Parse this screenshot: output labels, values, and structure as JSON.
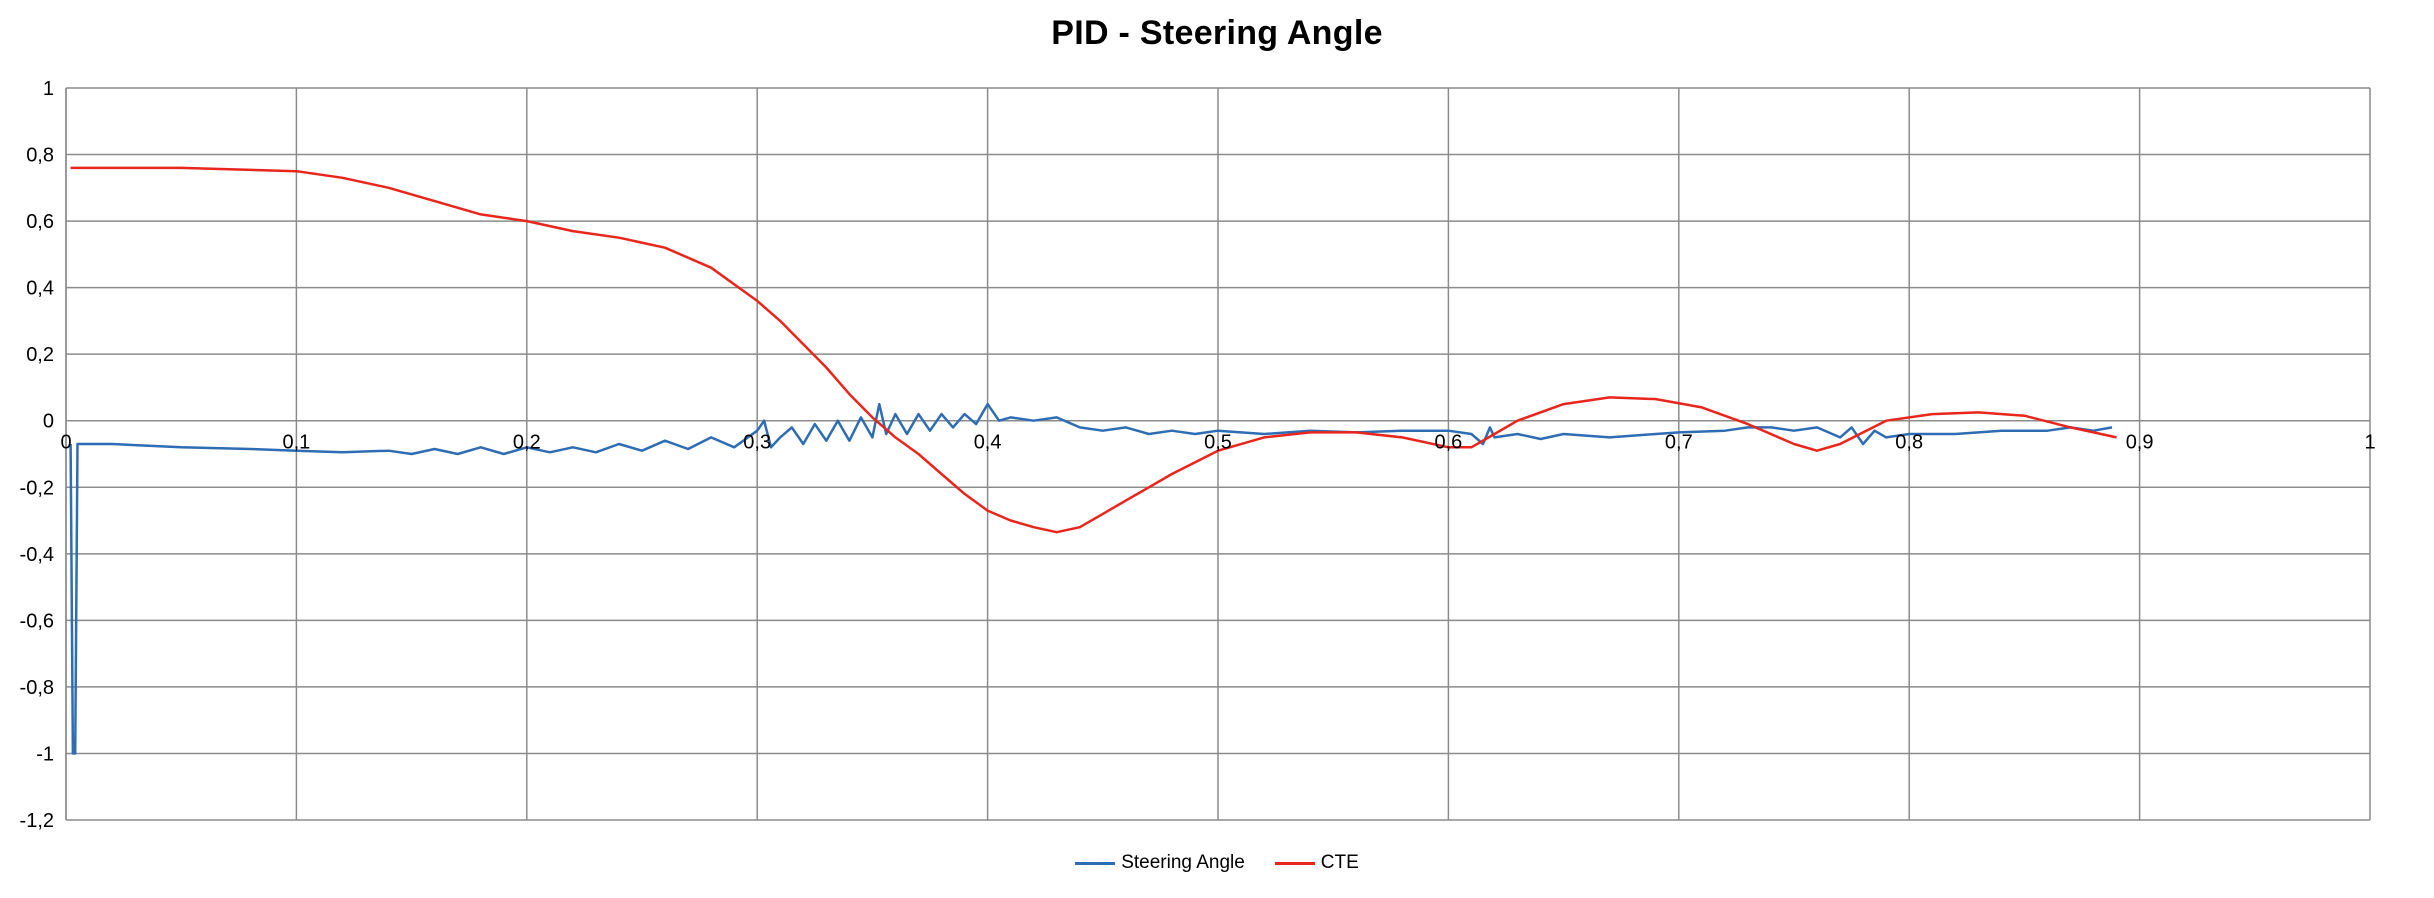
{
  "chart_data": {
    "type": "line",
    "title": "PID - Steering Angle",
    "xlabel": "",
    "ylabel": "",
    "xlim": [
      0,
      1
    ],
    "ylim": [
      -1.2,
      1
    ],
    "x_ticks": [
      "0",
      "0,1",
      "0,2",
      "0,3",
      "0,4",
      "0,5",
      "0,6",
      "0,7",
      "0,8",
      "0,9",
      "1"
    ],
    "y_ticks": [
      "1",
      "0,8",
      "0,6",
      "0,4",
      "0,2",
      "0",
      "-0,2",
      "-0,4",
      "-0,6",
      "-0,8",
      "-1",
      "-1,2"
    ],
    "grid": true,
    "legend_position": "bottom",
    "series": [
      {
        "name": "Steering Angle",
        "color": "#2e6db4",
        "points": [
          [
            0.002,
            -0.07
          ],
          [
            0.003,
            -1.0
          ],
          [
            0.004,
            -1.0
          ],
          [
            0.005,
            -0.07
          ],
          [
            0.02,
            -0.07
          ],
          [
            0.05,
            -0.08
          ],
          [
            0.08,
            -0.085
          ],
          [
            0.1,
            -0.09
          ],
          [
            0.12,
            -0.095
          ],
          [
            0.14,
            -0.09
          ],
          [
            0.15,
            -0.1
          ],
          [
            0.16,
            -0.085
          ],
          [
            0.17,
            -0.1
          ],
          [
            0.18,
            -0.08
          ],
          [
            0.19,
            -0.1
          ],
          [
            0.2,
            -0.08
          ],
          [
            0.21,
            -0.095
          ],
          [
            0.22,
            -0.08
          ],
          [
            0.23,
            -0.095
          ],
          [
            0.24,
            -0.07
          ],
          [
            0.25,
            -0.09
          ],
          [
            0.26,
            -0.06
          ],
          [
            0.27,
            -0.085
          ],
          [
            0.28,
            -0.05
          ],
          [
            0.29,
            -0.08
          ],
          [
            0.3,
            -0.03
          ],
          [
            0.303,
            0.0
          ],
          [
            0.306,
            -0.08
          ],
          [
            0.31,
            -0.05
          ],
          [
            0.315,
            -0.02
          ],
          [
            0.32,
            -0.07
          ],
          [
            0.325,
            -0.01
          ],
          [
            0.33,
            -0.06
          ],
          [
            0.335,
            0.0
          ],
          [
            0.34,
            -0.06
          ],
          [
            0.345,
            0.01
          ],
          [
            0.35,
            -0.05
          ],
          [
            0.353,
            0.05
          ],
          [
            0.356,
            -0.04
          ],
          [
            0.36,
            0.02
          ],
          [
            0.365,
            -0.04
          ],
          [
            0.37,
            0.02
          ],
          [
            0.375,
            -0.03
          ],
          [
            0.38,
            0.02
          ],
          [
            0.385,
            -0.02
          ],
          [
            0.39,
            0.02
          ],
          [
            0.395,
            -0.01
          ],
          [
            0.4,
            0.05
          ],
          [
            0.405,
            0.0
          ],
          [
            0.41,
            0.01
          ],
          [
            0.42,
            0.0
          ],
          [
            0.43,
            0.01
          ],
          [
            0.44,
            -0.02
          ],
          [
            0.45,
            -0.03
          ],
          [
            0.46,
            -0.02
          ],
          [
            0.47,
            -0.04
          ],
          [
            0.48,
            -0.03
          ],
          [
            0.49,
            -0.04
          ],
          [
            0.5,
            -0.03
          ],
          [
            0.52,
            -0.04
          ],
          [
            0.54,
            -0.03
          ],
          [
            0.56,
            -0.035
          ],
          [
            0.58,
            -0.03
          ],
          [
            0.6,
            -0.03
          ],
          [
            0.61,
            -0.04
          ],
          [
            0.615,
            -0.07
          ],
          [
            0.618,
            -0.02
          ],
          [
            0.62,
            -0.05
          ],
          [
            0.63,
            -0.04
          ],
          [
            0.64,
            -0.055
          ],
          [
            0.65,
            -0.04
          ],
          [
            0.67,
            -0.05
          ],
          [
            0.69,
            -0.04
          ],
          [
            0.7,
            -0.035
          ],
          [
            0.72,
            -0.03
          ],
          [
            0.73,
            -0.02
          ],
          [
            0.74,
            -0.02
          ],
          [
            0.75,
            -0.03
          ],
          [
            0.76,
            -0.02
          ],
          [
            0.77,
            -0.05
          ],
          [
            0.775,
            -0.02
          ],
          [
            0.78,
            -0.07
          ],
          [
            0.785,
            -0.03
          ],
          [
            0.79,
            -0.05
          ],
          [
            0.8,
            -0.04
          ],
          [
            0.82,
            -0.04
          ],
          [
            0.84,
            -0.03
          ],
          [
            0.86,
            -0.03
          ],
          [
            0.87,
            -0.02
          ],
          [
            0.88,
            -0.03
          ],
          [
            0.888,
            -0.02
          ]
        ]
      },
      {
        "name": "CTE",
        "color": "#e8261c",
        "points": [
          [
            0.002,
            0.76
          ],
          [
            0.05,
            0.76
          ],
          [
            0.1,
            0.75
          ],
          [
            0.12,
            0.73
          ],
          [
            0.14,
            0.7
          ],
          [
            0.16,
            0.66
          ],
          [
            0.18,
            0.62
          ],
          [
            0.2,
            0.6
          ],
          [
            0.22,
            0.57
          ],
          [
            0.24,
            0.55
          ],
          [
            0.26,
            0.52
          ],
          [
            0.28,
            0.46
          ],
          [
            0.3,
            0.36
          ],
          [
            0.31,
            0.3
          ],
          [
            0.32,
            0.23
          ],
          [
            0.33,
            0.16
          ],
          [
            0.34,
            0.08
          ],
          [
            0.35,
            0.01
          ],
          [
            0.36,
            -0.05
          ],
          [
            0.37,
            -0.1
          ],
          [
            0.38,
            -0.16
          ],
          [
            0.39,
            -0.22
          ],
          [
            0.4,
            -0.27
          ],
          [
            0.41,
            -0.3
          ],
          [
            0.42,
            -0.32
          ],
          [
            0.43,
            -0.335
          ],
          [
            0.44,
            -0.32
          ],
          [
            0.45,
            -0.28
          ],
          [
            0.46,
            -0.24
          ],
          [
            0.47,
            -0.2
          ],
          [
            0.48,
            -0.16
          ],
          [
            0.5,
            -0.09
          ],
          [
            0.52,
            -0.05
          ],
          [
            0.54,
            -0.035
          ],
          [
            0.56,
            -0.035
          ],
          [
            0.58,
            -0.05
          ],
          [
            0.6,
            -0.08
          ],
          [
            0.61,
            -0.08
          ],
          [
            0.62,
            -0.04
          ],
          [
            0.63,
            0.0
          ],
          [
            0.65,
            0.05
          ],
          [
            0.67,
            0.07
          ],
          [
            0.69,
            0.065
          ],
          [
            0.71,
            0.04
          ],
          [
            0.73,
            -0.01
          ],
          [
            0.75,
            -0.07
          ],
          [
            0.76,
            -0.09
          ],
          [
            0.77,
            -0.07
          ],
          [
            0.79,
            0.0
          ],
          [
            0.81,
            0.02
          ],
          [
            0.83,
            0.025
          ],
          [
            0.85,
            0.015
          ],
          [
            0.87,
            -0.02
          ],
          [
            0.89,
            -0.05
          ]
        ]
      }
    ]
  }
}
